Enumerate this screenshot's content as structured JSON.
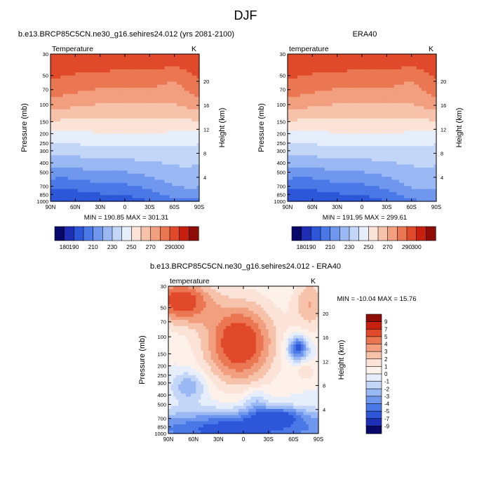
{
  "figure_title": "DJF",
  "chart_data": [
    {
      "type": "heatmap",
      "panel": "model",
      "title": "b.e13.BRCP85C5CN.ne30_g16.sehires24.012 (yrs 2081-2100)",
      "variable_label": "Temperature",
      "units": "K",
      "xlabel": "",
      "ylabel": "Pressure (mb)",
      "ylabel_right": "Height (km)",
      "x_ticks": [
        "90N",
        "60N",
        "30N",
        "0",
        "30S",
        "60S",
        "90S"
      ],
      "y_ticks": [
        "30",
        "50",
        "70",
        "100",
        "150",
        "200",
        "250",
        "300",
        "400",
        "500",
        "700",
        "850",
        "1000"
      ],
      "height_ticks": [
        "20",
        "16",
        "12",
        "8",
        "4"
      ],
      "stats_text": "MIN = 190.85  MAX = 301.31",
      "min": 190.85,
      "max": 301.31,
      "colorbar_labels": [
        "180",
        "190",
        "210",
        "230",
        "250",
        "270",
        "290",
        "300"
      ]
    },
    {
      "type": "heatmap",
      "panel": "obs",
      "title": "ERA40",
      "variable_label": "temperature",
      "units": "K",
      "xlabel": "",
      "ylabel": "Pressure (mb)",
      "ylabel_right": "Height (km)",
      "x_ticks": [
        "90N",
        "60N",
        "30N",
        "0",
        "30S",
        "60S",
        "90S"
      ],
      "y_ticks": [
        "30",
        "50",
        "70",
        "100",
        "150",
        "200",
        "250",
        "300",
        "400",
        "500",
        "700",
        "850",
        "1000"
      ],
      "height_ticks": [
        "20",
        "16",
        "12",
        "8",
        "4"
      ],
      "stats_text": "MIN = 191.95  MAX = 299.61",
      "min": 191.95,
      "max": 299.61,
      "colorbar_labels": [
        "180",
        "190",
        "210",
        "230",
        "250",
        "270",
        "290",
        "300"
      ]
    },
    {
      "type": "heatmap",
      "panel": "diff",
      "title": "b.e13.BRCP85C5CN.ne30_g16.sehires24.012 - ERA40",
      "variable_label": "temperature",
      "units": "K",
      "xlabel": "",
      "ylabel": "Pressure (mb)",
      "ylabel_right": "Height (km)",
      "x_ticks": [
        "90N",
        "60N",
        "30N",
        "0",
        "30S",
        "60S",
        "90S"
      ],
      "y_ticks": [
        "30",
        "50",
        "70",
        "100",
        "150",
        "200",
        "250",
        "300",
        "400",
        "500",
        "700",
        "850",
        "1000"
      ],
      "height_ticks": [
        "20",
        "16",
        "12",
        "8",
        "4"
      ],
      "stats_text": "MIN = -10.04  MAX =  15.76",
      "min": -10.04,
      "max": 15.76,
      "colorbar_labels": [
        "9",
        "7",
        "5",
        "4",
        "3",
        "2",
        "1",
        "0",
        "-1",
        "-2",
        "-3",
        "-4",
        "-5",
        "-7",
        "-9"
      ]
    }
  ],
  "colors": {
    "temp_scale": [
      "#08086b",
      "#1f2fb5",
      "#2e56d9",
      "#4a78e6",
      "#7097ee",
      "#9ab8f3",
      "#c3d6f8",
      "#e6eefb",
      "#fbe3d8",
      "#f7c2aa",
      "#f19f7e",
      "#ea7752",
      "#e04a2a",
      "#c7200e",
      "#8e0d06"
    ],
    "diff_scale": [
      "#8e0d06",
      "#c7200e",
      "#e04a2a",
      "#ea7752",
      "#f19f7e",
      "#f7c2aa",
      "#fbe3d8",
      "#fdf1ea",
      "#e6eefb",
      "#c3d6f8",
      "#9ab8f3",
      "#7097ee",
      "#4a78e6",
      "#2e56d9",
      "#1f2fb5",
      "#08086b"
    ]
  }
}
